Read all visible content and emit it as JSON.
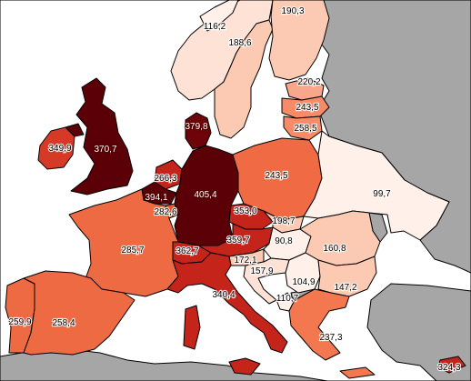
{
  "map": {
    "background_sea": "#ffffff",
    "non_data_land": "#a6a6a6",
    "border_color": "#000000",
    "color_scale": [
      "#fff0ea",
      "#fccab2",
      "#f88b67",
      "#e4542f",
      "#c5241a",
      "#8e0c0e",
      "#5b0006"
    ],
    "regions": [
      {
        "id": "iceland-top",
        "label": "116,2",
        "value": 116.2,
        "fill": "#fff0ea"
      },
      {
        "id": "norway",
        "label": "188,6",
        "value": 188.6,
        "fill": "#fde2d5"
      },
      {
        "id": "finland",
        "label": "190,3",
        "value": 190.3,
        "fill": "#fccab2"
      },
      {
        "id": "sweden",
        "label": "",
        "value": null,
        "fill": "#fccab2"
      },
      {
        "id": "estonia",
        "label": "220,2",
        "value": 220.2,
        "fill": "#f9a78a"
      },
      {
        "id": "latvia",
        "label": "243,5",
        "value": 243.5,
        "fill": "#f88b67"
      },
      {
        "id": "lithuania",
        "label": "258,5",
        "value": 258.5,
        "fill": "#f88b67"
      },
      {
        "id": "ireland",
        "label": "349,9",
        "value": 349.9,
        "fill": "#d63a26"
      },
      {
        "id": "uk",
        "label": "370,7",
        "value": 370.7,
        "fill": "#5b0006"
      },
      {
        "id": "denmark",
        "label": "379,8",
        "value": 379.8,
        "fill": "#6e0409"
      },
      {
        "id": "netherlands",
        "label": "266,3",
        "value": 266.3,
        "fill": "#c5241a"
      },
      {
        "id": "belgium",
        "label": "394,1",
        "value": 394.1,
        "fill": "#5b0006"
      },
      {
        "id": "luxembourg",
        "label": "282,6",
        "value": 282.6,
        "fill": "#e4542f"
      },
      {
        "id": "germany",
        "label": "405,4",
        "value": 405.4,
        "fill": "#5b0006"
      },
      {
        "id": "poland",
        "label": "243,5",
        "value": 243.5,
        "fill": "#f06a43"
      },
      {
        "id": "czechia",
        "label": "353,0",
        "value": 353.0,
        "fill": "#c5241a"
      },
      {
        "id": "slovakia",
        "label": "198,7",
        "value": 198.7,
        "fill": "#fccab2"
      },
      {
        "id": "belarus-ukraine",
        "label": "99,7",
        "value": 99.7,
        "fill": "#fff0ea"
      },
      {
        "id": "france",
        "label": "285,7",
        "value": 285.7,
        "fill": "#ee6a43"
      },
      {
        "id": "switzerland",
        "label": "362,7",
        "value": 362.7,
        "fill": "#c5241a"
      },
      {
        "id": "austria",
        "label": "359,7",
        "value": 359.7,
        "fill": "#c5241a"
      },
      {
        "id": "hungary",
        "label": "90,8",
        "value": 90.8,
        "fill": "#fff0ea"
      },
      {
        "id": "romania",
        "label": "160,8",
        "value": 160.8,
        "fill": "#fccab2"
      },
      {
        "id": "slovenia",
        "label": "172,1",
        "value": 172.1,
        "fill": "#fccab2"
      },
      {
        "id": "croatia",
        "label": "157,9",
        "value": 157.9,
        "fill": "#fde2d5"
      },
      {
        "id": "serbia",
        "label": "104,9",
        "value": 104.9,
        "fill": "#fff0ea"
      },
      {
        "id": "bulgaria",
        "label": "147,2",
        "value": 147.2,
        "fill": "#fccab2"
      },
      {
        "id": "montenegro",
        "label": "110,7",
        "value": 110.7,
        "fill": "#fff0ea"
      },
      {
        "id": "italy",
        "label": "340,4",
        "value": 340.4,
        "fill": "#c5241a"
      },
      {
        "id": "portugal",
        "label": "259,9",
        "value": 259.9,
        "fill": "#ee6a43"
      },
      {
        "id": "spain",
        "label": "258,4",
        "value": 258.4,
        "fill": "#ee6a43"
      },
      {
        "id": "greece",
        "label": "237,3",
        "value": 237.3,
        "fill": "#f3784f"
      },
      {
        "id": "cyprus",
        "label": "324,3",
        "value": 324.3,
        "fill": "#c5241a"
      }
    ]
  }
}
